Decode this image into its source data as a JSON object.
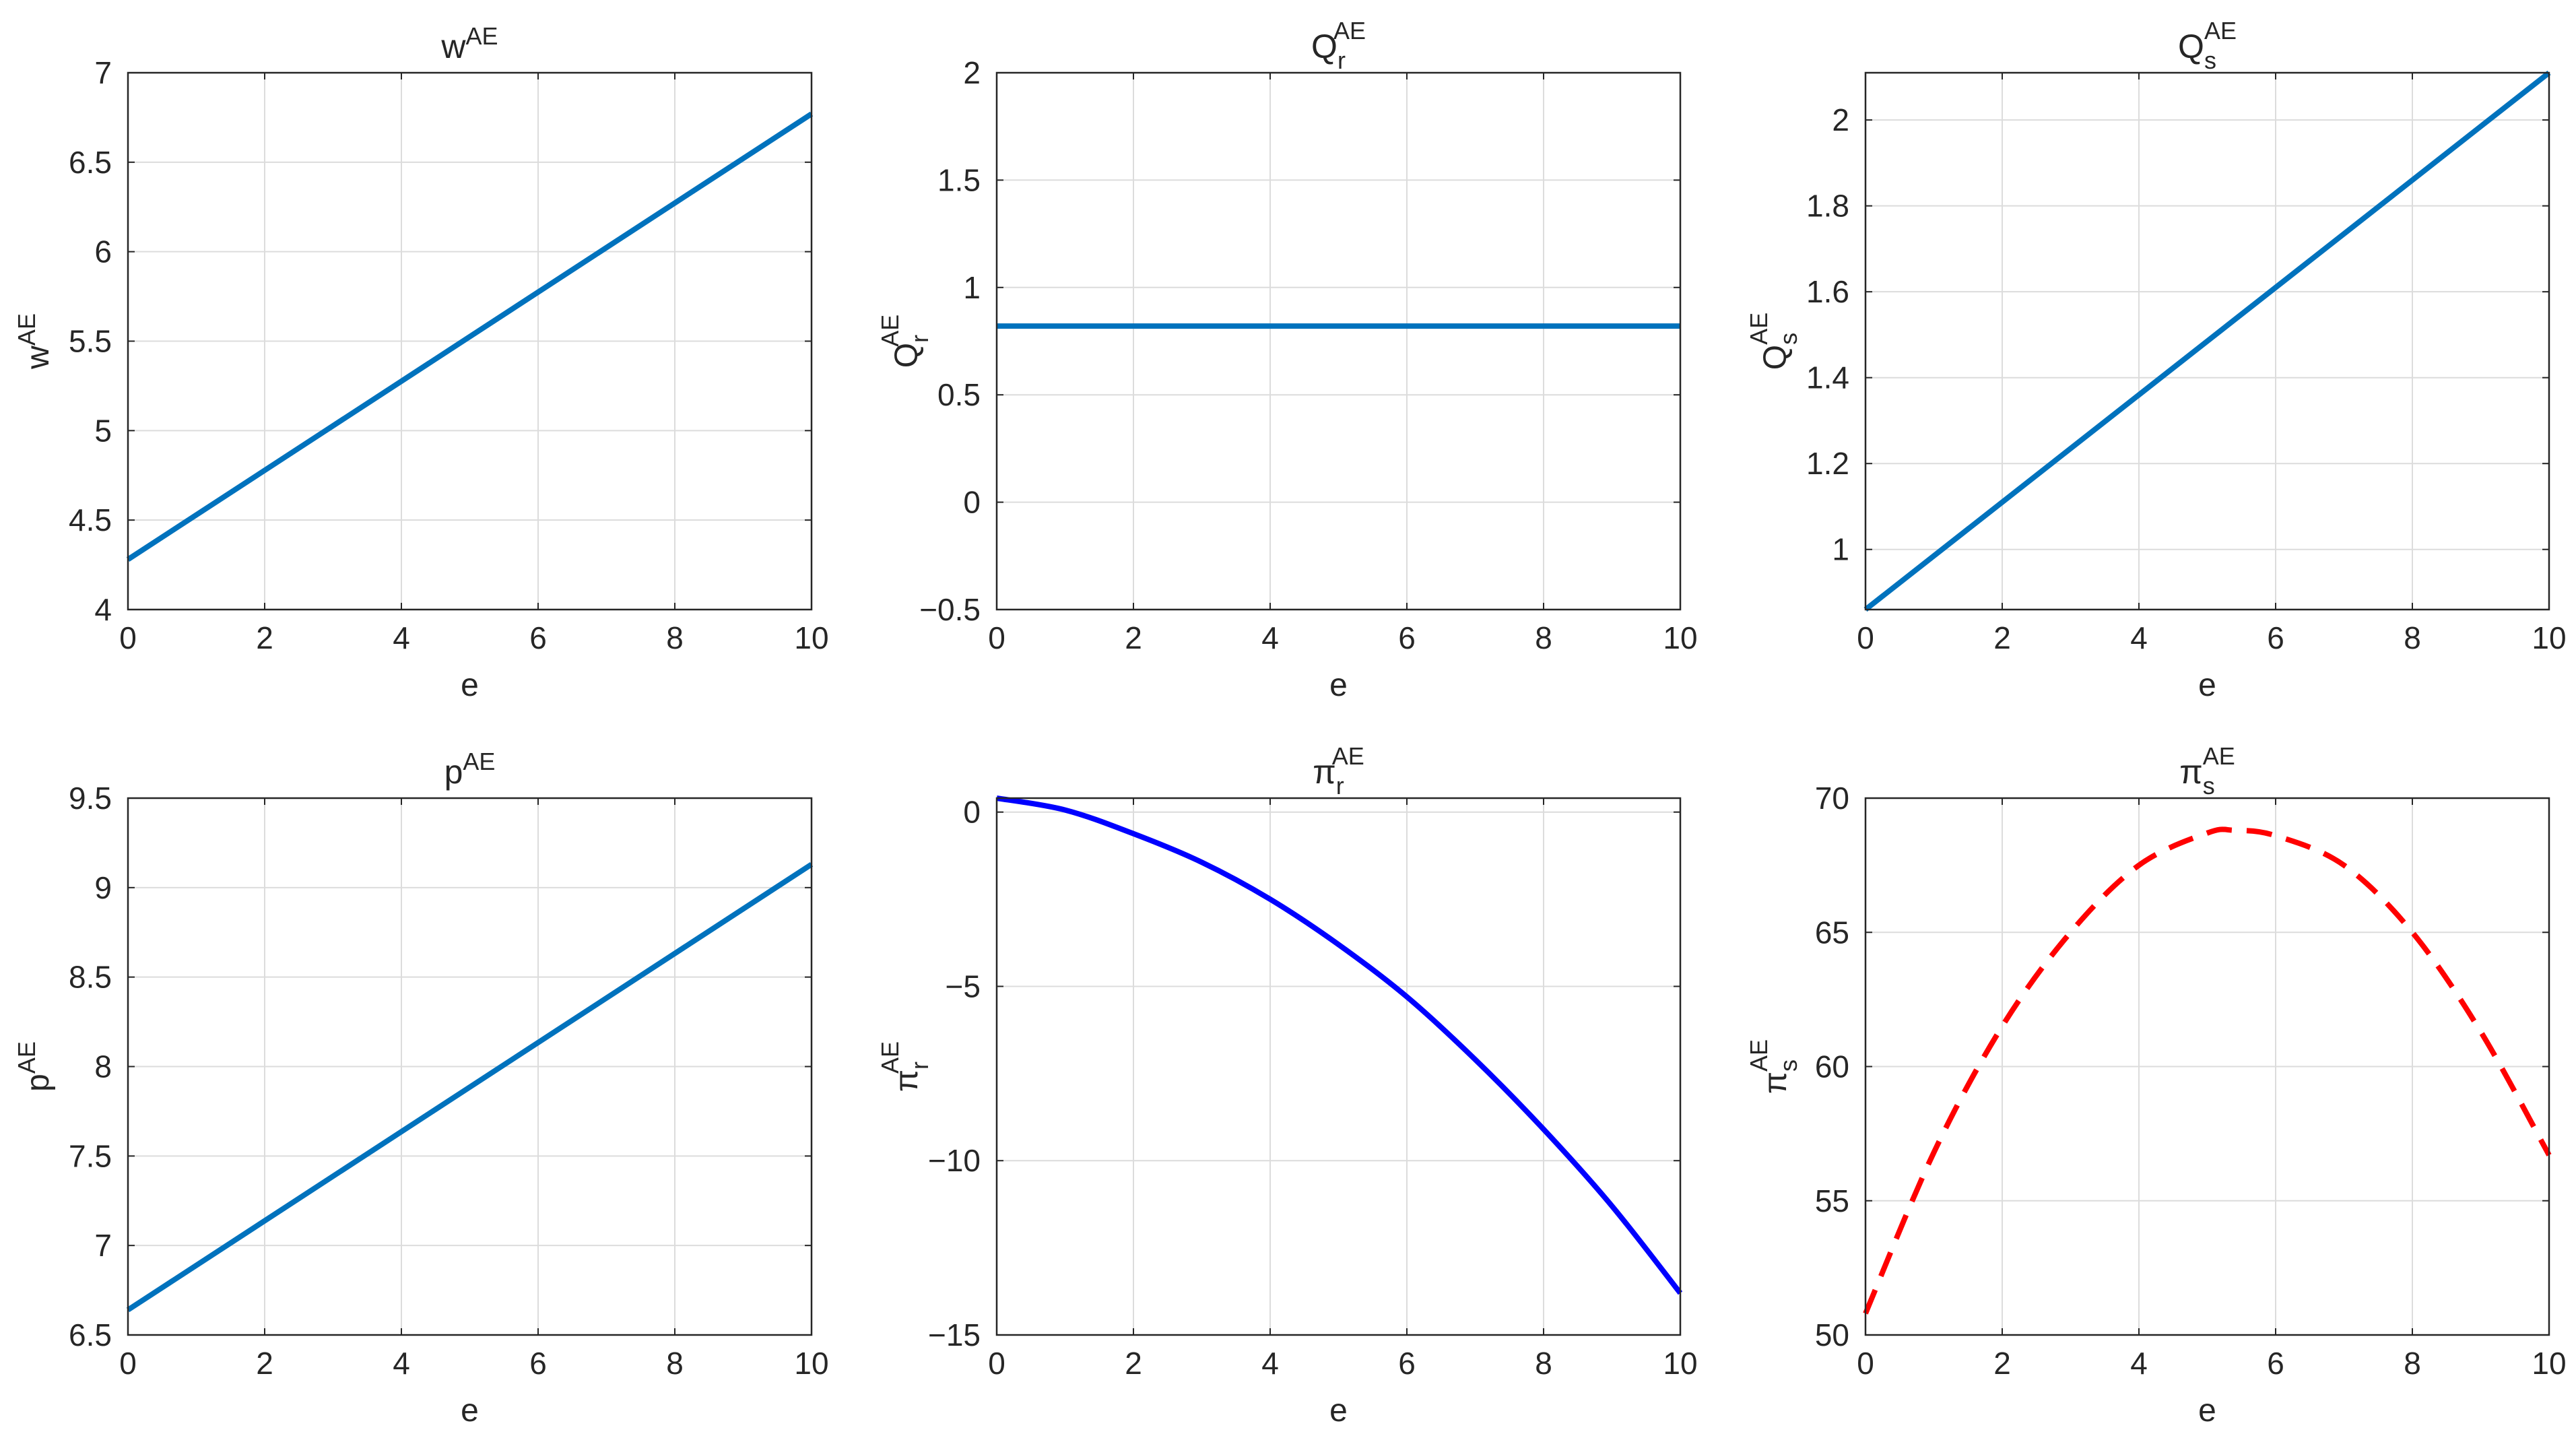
{
  "figure": {
    "layout": "2x3 grid of line plots"
  },
  "chart_data": [
    {
      "type": "line",
      "title": {
        "base": "w",
        "sub": "",
        "sup": "AE"
      },
      "xlabel": "e",
      "ylabel": {
        "base": "w",
        "sub": "",
        "sup": "AE"
      },
      "xlim": [
        0,
        10
      ],
      "ylim": [
        4,
        7
      ],
      "xticks": [
        0,
        2,
        4,
        6,
        8,
        10
      ],
      "yticks": [
        4,
        4.5,
        5,
        5.5,
        6,
        6.5,
        7
      ],
      "ytick_labels": [
        "4",
        "4.5",
        "5",
        "5.5",
        "6",
        "6.5",
        "7"
      ],
      "grid": true,
      "series": [
        {
          "style": "solid",
          "color": "#0072BD",
          "x": [
            0,
            10
          ],
          "y": [
            4.28,
            6.77
          ]
        }
      ]
    },
    {
      "type": "line",
      "title": {
        "base": "Q",
        "sub": "r",
        "sup": "AE"
      },
      "xlabel": "e",
      "ylabel": {
        "base": "Q",
        "sub": "r",
        "sup": "AE"
      },
      "xlim": [
        0,
        10
      ],
      "ylim": [
        -0.5,
        2
      ],
      "xticks": [
        0,
        2,
        4,
        6,
        8,
        10
      ],
      "yticks": [
        -0.5,
        0,
        0.5,
        1,
        1.5,
        2
      ],
      "ytick_labels": [
        "−0.5",
        "0",
        "0.5",
        "1",
        "1.5",
        "2"
      ],
      "grid": true,
      "series": [
        {
          "style": "solid",
          "color": "#0072BD",
          "x": [
            0,
            10
          ],
          "y": [
            0.82,
            0.82
          ]
        }
      ]
    },
    {
      "type": "line",
      "title": {
        "base": "Q",
        "sub": "s",
        "sup": "AE"
      },
      "xlabel": "e",
      "ylabel": {
        "base": "Q",
        "sub": "s",
        "sup": "AE"
      },
      "xlim": [
        0,
        10
      ],
      "ylim": [
        0.86,
        2.11
      ],
      "xticks": [
        0,
        2,
        4,
        6,
        8,
        10
      ],
      "yticks": [
        1,
        1.2,
        1.4,
        1.6,
        1.8,
        2
      ],
      "ytick_labels": [
        "1",
        "1.2",
        "1.4",
        "1.6",
        "1.8",
        "2"
      ],
      "grid": true,
      "series": [
        {
          "style": "solid",
          "color": "#0072BD",
          "x": [
            0,
            10
          ],
          "y": [
            0.86,
            2.11
          ]
        }
      ]
    },
    {
      "type": "line",
      "title": {
        "base": "p",
        "sub": "",
        "sup": "AE"
      },
      "xlabel": "e",
      "ylabel": {
        "base": "p",
        "sub": "",
        "sup": "AE"
      },
      "xlim": [
        0,
        10
      ],
      "ylim": [
        6.5,
        9.5
      ],
      "xticks": [
        0,
        2,
        4,
        6,
        8,
        10
      ],
      "yticks": [
        6.5,
        7,
        7.5,
        8,
        8.5,
        9,
        9.5
      ],
      "ytick_labels": [
        "6.5",
        "7",
        "7.5",
        "8",
        "8.5",
        "9",
        "9.5"
      ],
      "grid": true,
      "series": [
        {
          "style": "solid",
          "color": "#0072BD",
          "x": [
            0,
            10
          ],
          "y": [
            6.64,
            9.13
          ]
        }
      ]
    },
    {
      "type": "line",
      "title": {
        "base": "π",
        "sub": "r",
        "sup": "AE"
      },
      "xlabel": "e",
      "ylabel": {
        "base": "π",
        "sub": "r",
        "sup": "AE"
      },
      "xlim": [
        0,
        10
      ],
      "ylim": [
        -15,
        0.4
      ],
      "xticks": [
        0,
        2,
        4,
        6,
        8,
        10
      ],
      "yticks": [
        -15,
        -10,
        -5,
        0
      ],
      "ytick_labels": [
        "−15",
        "−10",
        "−5",
        "0"
      ],
      "grid": true,
      "series": [
        {
          "style": "solid",
          "color": "#0000FF",
          "x": [
            0,
            1,
            2,
            3,
            4,
            5,
            6,
            7,
            8,
            9,
            10
          ],
          "y": [
            0.4,
            0.06,
            -0.62,
            -1.44,
            -2.5,
            -3.8,
            -5.3,
            -7.1,
            -9.1,
            -11.3,
            -13.8
          ]
        }
      ]
    },
    {
      "type": "line",
      "title": {
        "base": "π",
        "sub": "s",
        "sup": "AE"
      },
      "xlabel": "e",
      "ylabel": {
        "base": "π",
        "sub": "s",
        "sup": "AE"
      },
      "xlim": [
        0,
        10
      ],
      "ylim": [
        50,
        70
      ],
      "xticks": [
        0,
        2,
        4,
        6,
        8,
        10
      ],
      "yticks": [
        50,
        55,
        60,
        65,
        70
      ],
      "ytick_labels": [
        "50",
        "55",
        "60",
        "65",
        "70"
      ],
      "grid": true,
      "series": [
        {
          "style": "dashed",
          "color": "#FF0000",
          "x": [
            0,
            1,
            2,
            3,
            4,
            5,
            5.4,
            6,
            7,
            8,
            9,
            10
          ],
          "y": [
            50.8,
            56.8,
            61.5,
            65.0,
            67.5,
            68.7,
            68.8,
            68.6,
            67.5,
            65.0,
            61.3,
            56.7
          ]
        }
      ]
    }
  ]
}
